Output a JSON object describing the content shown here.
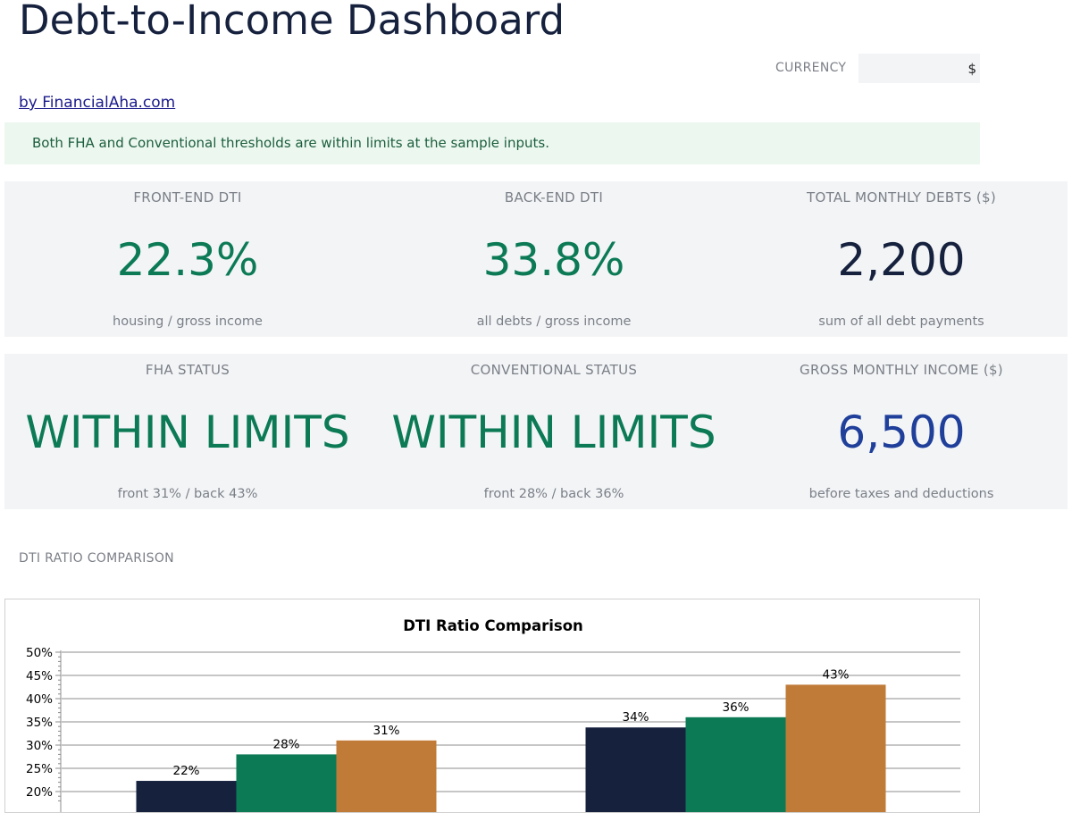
{
  "header": {
    "title": "Debt-to-Income Dashboard",
    "byline": "by FinancialAha.com",
    "currency_label": "CURRENCY",
    "currency_value": "$"
  },
  "banner": {
    "message": "Both FHA and Conventional thresholds are within limits at the sample inputs."
  },
  "cards": [
    {
      "label": "FRONT-END DTI",
      "value": "22.3%",
      "sub": "housing / gross income",
      "color": "#0b7a55"
    },
    {
      "label": "BACK-END DTI",
      "value": "33.8%",
      "sub": "all debts / gross income",
      "color": "#0b7a55"
    },
    {
      "label": "TOTAL MONTHLY DEBTS ($)",
      "value": "2,200",
      "sub": "sum of all debt payments",
      "color": "#16213e"
    },
    {
      "label": "FHA STATUS",
      "value": "WITHIN LIMITS",
      "sub": "front 31% / back 43%",
      "color": "#0b7a55"
    },
    {
      "label": "CONVENTIONAL STATUS",
      "value": "WITHIN LIMITS",
      "sub": "front 28% / back 36%",
      "color": "#0b7a55"
    },
    {
      "label": "GROSS MONTHLY INCOME ($)",
      "value": "6,500",
      "sub": "before taxes and deductions",
      "color": "#1f3f9a"
    }
  ],
  "section": {
    "chart_label": "DTI RATIO COMPARISON"
  },
  "chart_data": {
    "type": "bar",
    "title": "DTI Ratio Comparison",
    "xlabel": "",
    "ylabel": "",
    "ylim": [
      20,
      50
    ],
    "yticks": [
      "20%",
      "25%",
      "30%",
      "35%",
      "40%",
      "45%",
      "50%"
    ],
    "grid": true,
    "groups": 2,
    "series": [
      {
        "values": [
          22.3,
          33.8
        ],
        "labels": [
          "22%",
          "34%"
        ],
        "color": "#16213e"
      },
      {
        "values": [
          28,
          36
        ],
        "labels": [
          "28%",
          "36%"
        ],
        "color": "#0b7a55"
      },
      {
        "values": [
          31,
          43
        ],
        "labels": [
          "31%",
          "43%"
        ],
        "color": "#c07b38"
      }
    ]
  }
}
